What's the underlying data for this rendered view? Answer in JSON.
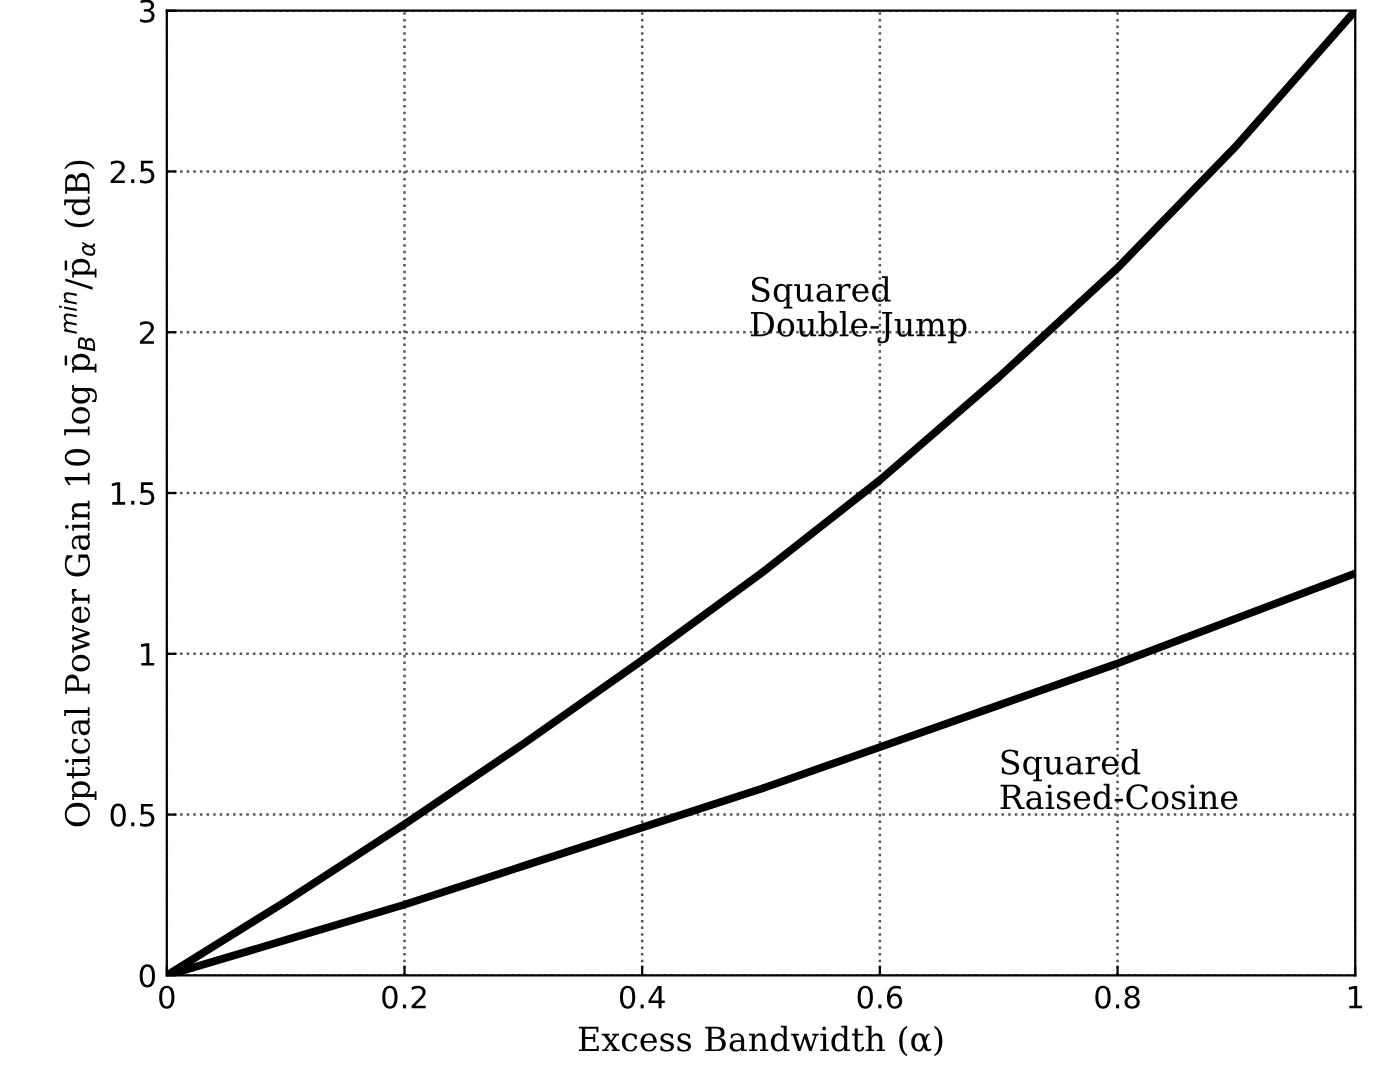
{
  "chart_data": {
    "type": "line",
    "xlabel": "Excess Bandwidth (α)",
    "ylabel": "Optical Power Gain 10 log p̄$_{B}$$^{min}$/p̄$_{α}$ (dB)",
    "x": [
      0,
      0.1,
      0.2,
      0.3,
      0.4,
      0.5,
      0.6,
      0.7,
      0.8,
      0.9,
      1.0
    ],
    "series": [
      {
        "name": "Squared\nDouble-Jump",
        "color": "#000000",
        "values": [
          0,
          0.23,
          0.47,
          0.72,
          0.98,
          1.25,
          1.54,
          1.86,
          2.2,
          2.58,
          3.0
        ]
      },
      {
        "name": "Squared\nRaised-Cosine",
        "color": "#000000",
        "values": [
          0,
          0.11,
          0.22,
          0.34,
          0.46,
          0.58,
          0.71,
          0.84,
          0.97,
          1.11,
          1.25
        ]
      }
    ],
    "xlim": [
      0,
      1
    ],
    "xticks": [
      0,
      0.2,
      0.4,
      0.6,
      0.8,
      1
    ],
    "ylim": [
      0,
      3
    ],
    "yticks": [
      0,
      0.5,
      1,
      1.5,
      2,
      2.5,
      3
    ],
    "grid": true,
    "line_style": "solid",
    "marker": "none",
    "legend": false
  }
}
